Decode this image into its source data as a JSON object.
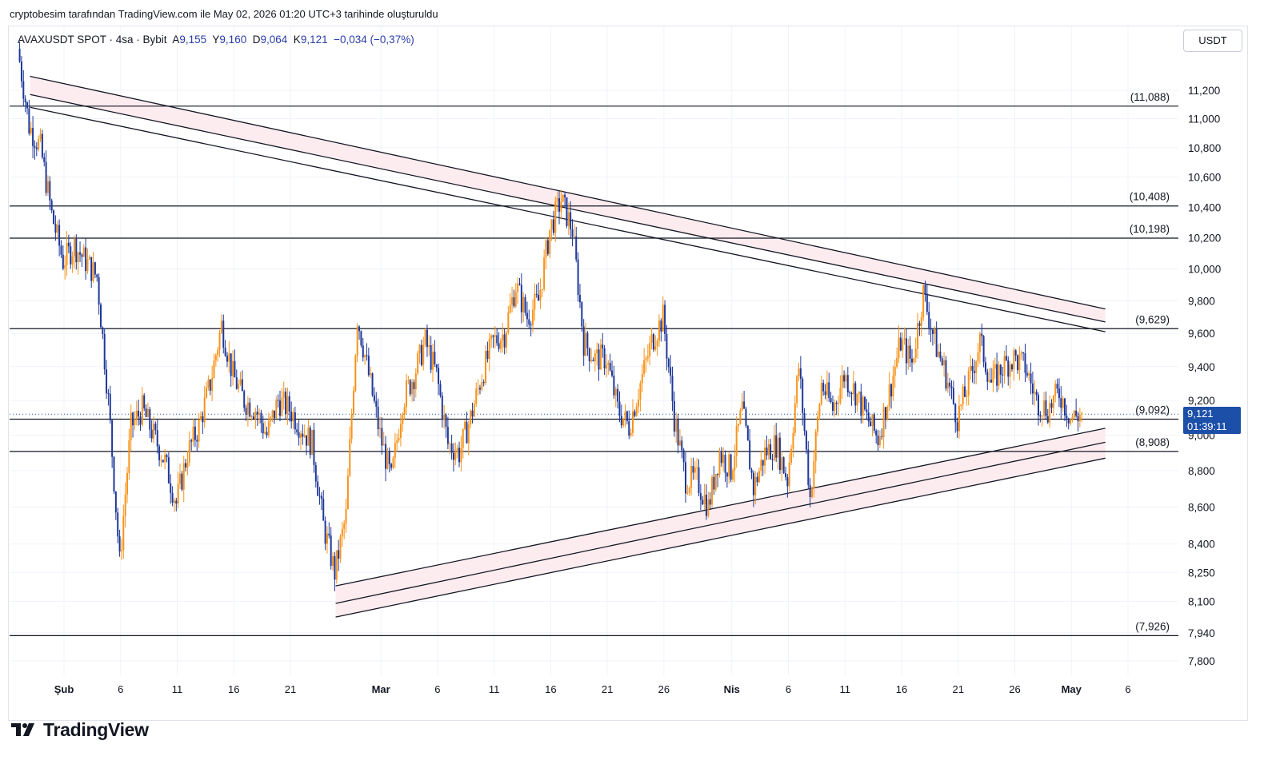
{
  "header": {
    "caption": "cryptobesim tarafından TradingView.com ile May 02, 2026 01:20 UTC+3 tarihinde oluşturuldu"
  },
  "legend": {
    "symbol": "AVAXUSDT SPOT · 4sa · Bybit",
    "open_label": "A",
    "open": "9,155",
    "high_label": "Y",
    "high": "9,160",
    "low_label": "D",
    "low": "9,064",
    "close_label": "K",
    "close": "9,121",
    "change": "−0,034 (−0,37%)"
  },
  "currency": "USDT",
  "price_tag": {
    "price": "9,121",
    "countdown": "01:39:11"
  },
  "brand": {
    "name": "TradingView"
  },
  "chart_data": {
    "type": "candlestick",
    "symbol": "AVAXUSDT",
    "interval": "4h",
    "price_axis": {
      "ticks": [
        "11,200",
        "11,000",
        "10,800",
        "10,600",
        "10,400",
        "10,200",
        "10,000",
        "9,800",
        "9,600",
        "9,400",
        "9,200",
        "9,000",
        "8,800",
        "8,600",
        "8,400",
        "8,250",
        "8,100",
        "7,940",
        "7,800"
      ],
      "tick_values": [
        11.2,
        11.0,
        10.8,
        10.6,
        10.4,
        10.2,
        10.0,
        9.8,
        9.6,
        9.4,
        9.2,
        9.0,
        8.8,
        8.6,
        8.4,
        8.25,
        8.1,
        7.94,
        7.8
      ],
      "scale": "log",
      "range": [
        7.7,
        11.5
      ]
    },
    "time_axis": {
      "range": [
        "2026-01-26",
        "2026-05-09"
      ],
      "ticks": [
        {
          "label": "Şub",
          "date": "2026-02-01",
          "bold": true
        },
        {
          "label": "6",
          "date": "2026-02-06"
        },
        {
          "label": "11",
          "date": "2026-02-11"
        },
        {
          "label": "16",
          "date": "2026-02-16"
        },
        {
          "label": "21",
          "date": "2026-02-21"
        },
        {
          "label": "Mar",
          "date": "2026-03-01",
          "bold": true
        },
        {
          "label": "6",
          "date": "2026-03-06"
        },
        {
          "label": "11",
          "date": "2026-03-11"
        },
        {
          "label": "16",
          "date": "2026-03-16"
        },
        {
          "label": "21",
          "date": "2026-03-21"
        },
        {
          "label": "26",
          "date": "2026-03-26"
        },
        {
          "label": "Nis",
          "date": "2026-04-01",
          "bold": true
        },
        {
          "label": "6",
          "date": "2026-04-06"
        },
        {
          "label": "11",
          "date": "2026-04-11"
        },
        {
          "label": "16",
          "date": "2026-04-16"
        },
        {
          "label": "21",
          "date": "2026-04-21"
        },
        {
          "label": "26",
          "date": "2026-04-26"
        },
        {
          "label": "May",
          "date": "2026-05-01",
          "bold": true
        },
        {
          "label": "6",
          "date": "2026-05-06"
        }
      ]
    },
    "horizontal_levels": [
      {
        "label": "(11,088)",
        "value": 11.088
      },
      {
        "label": "(10,408)",
        "value": 10.408
      },
      {
        "label": "(10,198)",
        "value": 10.198
      },
      {
        "label": "(9,629)",
        "value": 9.629
      },
      {
        "label": "(9,092)",
        "value": 9.092
      },
      {
        "label": "(8,908)",
        "value": 8.908
      },
      {
        "label": "(7,926)",
        "value": 7.926
      }
    ],
    "trend_lines": [
      {
        "name": "upper-outer",
        "from": {
          "date": "2026-01-29",
          "value": 11.3
        },
        "to": {
          "date": "2026-05-04",
          "value": 9.75
        }
      },
      {
        "name": "upper-mid",
        "from": {
          "date": "2026-01-29",
          "value": 11.17
        },
        "to": {
          "date": "2026-05-04",
          "value": 9.67
        }
      },
      {
        "name": "upper-inner",
        "from": {
          "date": "2026-01-29",
          "value": 11.08
        },
        "to": {
          "date": "2026-05-04",
          "value": 9.61
        }
      },
      {
        "name": "lower-top",
        "from": {
          "date": "2026-02-25",
          "value": 8.18
        },
        "to": {
          "date": "2026-05-04",
          "value": 9.04
        }
      },
      {
        "name": "lower-mid",
        "from": {
          "date": "2026-02-25",
          "value": 8.09
        },
        "to": {
          "date": "2026-05-04",
          "value": 8.96
        }
      },
      {
        "name": "lower-bottom",
        "from": {
          "date": "2026-02-25",
          "value": 8.02
        },
        "to": {
          "date": "2026-05-04",
          "value": 8.87
        }
      }
    ],
    "last_price": 9.121,
    "colors": {
      "up": "#f7931a",
      "down": "#1e3799",
      "band": "#fdecef",
      "level": "#131722",
      "price_tag": "#1c4fa8"
    },
    "series": [
      {
        "name": "AVAXUSDT",
        "path": [
          [
            "2026-01-28",
            11.5
          ],
          [
            "2026-01-29",
            10.95
          ],
          [
            "2026-01-30",
            10.8
          ],
          [
            "2026-01-31",
            10.35
          ],
          [
            "2026-02-01",
            10.05
          ],
          [
            "2026-02-02",
            10.15
          ],
          [
            "2026-02-03",
            10.05
          ],
          [
            "2026-02-04",
            9.95
          ],
          [
            "2026-02-05",
            9.2
          ],
          [
            "2026-02-06",
            8.3
          ],
          [
            "2026-02-07",
            9.05
          ],
          [
            "2026-02-08",
            9.15
          ],
          [
            "2026-02-09",
            9.0
          ],
          [
            "2026-02-10",
            8.85
          ],
          [
            "2026-02-11",
            8.62
          ],
          [
            "2026-02-12",
            8.9
          ],
          [
            "2026-02-13",
            9.05
          ],
          [
            "2026-02-14",
            9.3
          ],
          [
            "2026-02-15",
            9.65
          ],
          [
            "2026-02-16",
            9.35
          ],
          [
            "2026-02-17",
            9.2
          ],
          [
            "2026-02-18",
            9.15
          ],
          [
            "2026-02-19",
            9.0
          ],
          [
            "2026-02-20",
            9.2
          ],
          [
            "2026-02-21",
            9.15
          ],
          [
            "2026-02-22",
            9.05
          ],
          [
            "2026-02-23",
            8.95
          ],
          [
            "2026-02-24",
            8.5
          ],
          [
            "2026-02-25",
            8.25
          ],
          [
            "2026-02-26",
            8.55
          ],
          [
            "2026-02-27",
            9.7
          ],
          [
            "2026-02-28",
            9.35
          ],
          [
            "2026-03-01",
            9.0
          ],
          [
            "2026-03-02",
            8.75
          ],
          [
            "2026-03-03",
            9.2
          ],
          [
            "2026-03-04",
            9.35
          ],
          [
            "2026-03-05",
            9.55
          ],
          [
            "2026-03-06",
            9.35
          ],
          [
            "2026-03-07",
            8.95
          ],
          [
            "2026-03-08",
            8.9
          ],
          [
            "2026-03-09",
            9.1
          ],
          [
            "2026-03-10",
            9.35
          ],
          [
            "2026-03-11",
            9.55
          ],
          [
            "2026-03-12",
            9.6
          ],
          [
            "2026-03-13",
            9.9
          ],
          [
            "2026-03-14",
            9.7
          ],
          [
            "2026-03-15",
            9.8
          ],
          [
            "2026-03-16",
            10.25
          ],
          [
            "2026-03-17",
            10.45
          ],
          [
            "2026-03-18",
            10.25
          ],
          [
            "2026-03-19",
            9.55
          ],
          [
            "2026-03-20",
            9.45
          ],
          [
            "2026-03-21",
            9.45
          ],
          [
            "2026-03-22",
            9.15
          ],
          [
            "2026-03-23",
            9.05
          ],
          [
            "2026-03-24",
            9.3
          ],
          [
            "2026-03-25",
            9.55
          ],
          [
            "2026-03-26",
            9.7
          ],
          [
            "2026-03-27",
            9.1
          ],
          [
            "2026-03-28",
            8.75
          ],
          [
            "2026-03-29",
            8.75
          ],
          [
            "2026-03-30",
            8.6
          ],
          [
            "2026-03-31",
            8.9
          ],
          [
            "2026-04-01",
            8.8
          ],
          [
            "2026-04-02",
            9.15
          ],
          [
            "2026-04-03",
            8.7
          ],
          [
            "2026-04-04",
            8.9
          ],
          [
            "2026-04-05",
            8.95
          ],
          [
            "2026-04-06",
            8.75
          ],
          [
            "2026-04-07",
            9.4
          ],
          [
            "2026-04-08",
            8.65
          ],
          [
            "2026-04-09",
            9.3
          ],
          [
            "2026-04-10",
            9.15
          ],
          [
            "2026-04-11",
            9.35
          ],
          [
            "2026-04-12",
            9.25
          ],
          [
            "2026-04-13",
            9.1
          ],
          [
            "2026-04-14",
            8.98
          ],
          [
            "2026-04-15",
            9.25
          ],
          [
            "2026-04-16",
            9.55
          ],
          [
            "2026-04-17",
            9.42
          ],
          [
            "2026-04-18",
            9.85
          ],
          [
            "2026-04-19",
            9.55
          ],
          [
            "2026-04-20",
            9.35
          ],
          [
            "2026-04-21",
            9.1
          ],
          [
            "2026-04-22",
            9.3
          ],
          [
            "2026-04-23",
            9.55
          ],
          [
            "2026-04-24",
            9.3
          ],
          [
            "2026-04-25",
            9.4
          ],
          [
            "2026-04-26",
            9.45
          ],
          [
            "2026-04-27",
            9.4
          ],
          [
            "2026-04-28",
            9.2
          ],
          [
            "2026-04-29",
            9.15
          ],
          [
            "2026-04-30",
            9.25
          ],
          [
            "2026-05-01",
            9.1
          ],
          [
            "2026-05-02",
            9.121
          ]
        ]
      }
    ]
  }
}
